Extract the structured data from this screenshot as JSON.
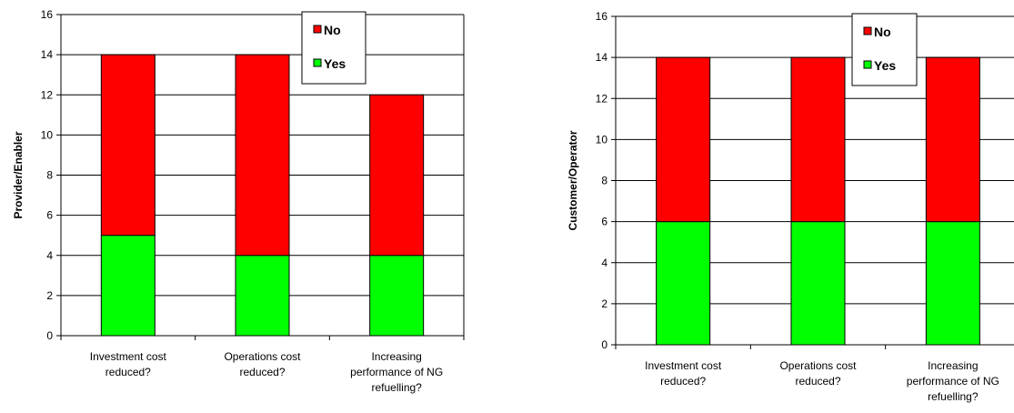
{
  "chart_data": [
    {
      "type": "bar",
      "stacked": true,
      "categories": [
        [
          "Investment cost",
          "reduced?"
        ],
        [
          "Operations cost",
          "reduced?"
        ],
        [
          "Increasing",
          "performance of NG",
          "refuelling?"
        ]
      ],
      "series": [
        {
          "name": "Yes",
          "color": "#00ff00",
          "values": [
            5,
            4,
            4
          ]
        },
        {
          "name": "No",
          "color": "#ff0000",
          "values": [
            9,
            10,
            8
          ]
        }
      ],
      "ylabel": "Provider/Enabler",
      "ylim": [
        0,
        16
      ],
      "yticks": [
        0,
        2,
        4,
        6,
        8,
        10,
        12,
        14,
        16
      ],
      "grid": true,
      "legend": "top-right"
    },
    {
      "type": "bar",
      "stacked": true,
      "categories": [
        [
          "Investment cost",
          "reduced?"
        ],
        [
          "Operations cost",
          "reduced?"
        ],
        [
          "Increasing",
          "performance of NG",
          "refuelling?"
        ]
      ],
      "series": [
        {
          "name": "Yes",
          "color": "#00ff00",
          "values": [
            6,
            6,
            6
          ]
        },
        {
          "name": "No",
          "color": "#ff0000",
          "values": [
            8,
            8,
            8
          ]
        }
      ],
      "ylabel": "Customer/Operator",
      "ylim": [
        0,
        16
      ],
      "yticks": [
        0,
        2,
        4,
        6,
        8,
        10,
        12,
        14,
        16
      ],
      "grid": true,
      "legend": "top-right"
    }
  ]
}
